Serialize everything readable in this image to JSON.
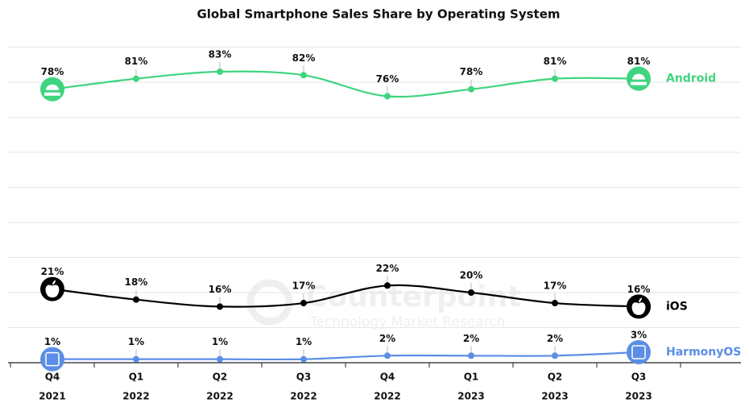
{
  "chart_data": {
    "type": "line",
    "title": "Global Smartphone Sales Share by Operating System",
    "watermark": [
      "Counterpoint",
      "Technology Market Research"
    ],
    "categories": [
      [
        "Q4",
        "2021"
      ],
      [
        "Q1",
        "2022"
      ],
      [
        "Q2",
        "2022"
      ],
      [
        "Q3",
        "2022"
      ],
      [
        "Q4",
        "2022"
      ],
      [
        "Q1",
        "2023"
      ],
      [
        "Q2",
        "2023"
      ],
      [
        "Q3",
        "2023"
      ]
    ],
    "ylim": [
      0,
      90
    ],
    "yticks": [
      0,
      10,
      20,
      30,
      40,
      50,
      60,
      70,
      80,
      90
    ],
    "grid": true,
    "series": [
      {
        "name": "Android",
        "color": "#3fd47f",
        "values": [
          78,
          81,
          83,
          82,
          76,
          78,
          81,
          81
        ],
        "value_labels": [
          "78%",
          "81%",
          "83%",
          "82%",
          "76%",
          "78%",
          "81%",
          "81%"
        ]
      },
      {
        "name": "iOS",
        "color": "#000000",
        "values": [
          21,
          18,
          16,
          17,
          22,
          20,
          17,
          16
        ],
        "value_labels": [
          "21%",
          "18%",
          "16%",
          "17%",
          "22%",
          "20%",
          "17%",
          "16%"
        ]
      },
      {
        "name": "HarmonyOS",
        "color": "#5b8ee6",
        "values": [
          1,
          1,
          1,
          1,
          2,
          2,
          2,
          3
        ],
        "value_labels": [
          "1%",
          "1%",
          "1%",
          "1%",
          "2%",
          "2%",
          "2%",
          "3%"
        ]
      }
    ]
  }
}
